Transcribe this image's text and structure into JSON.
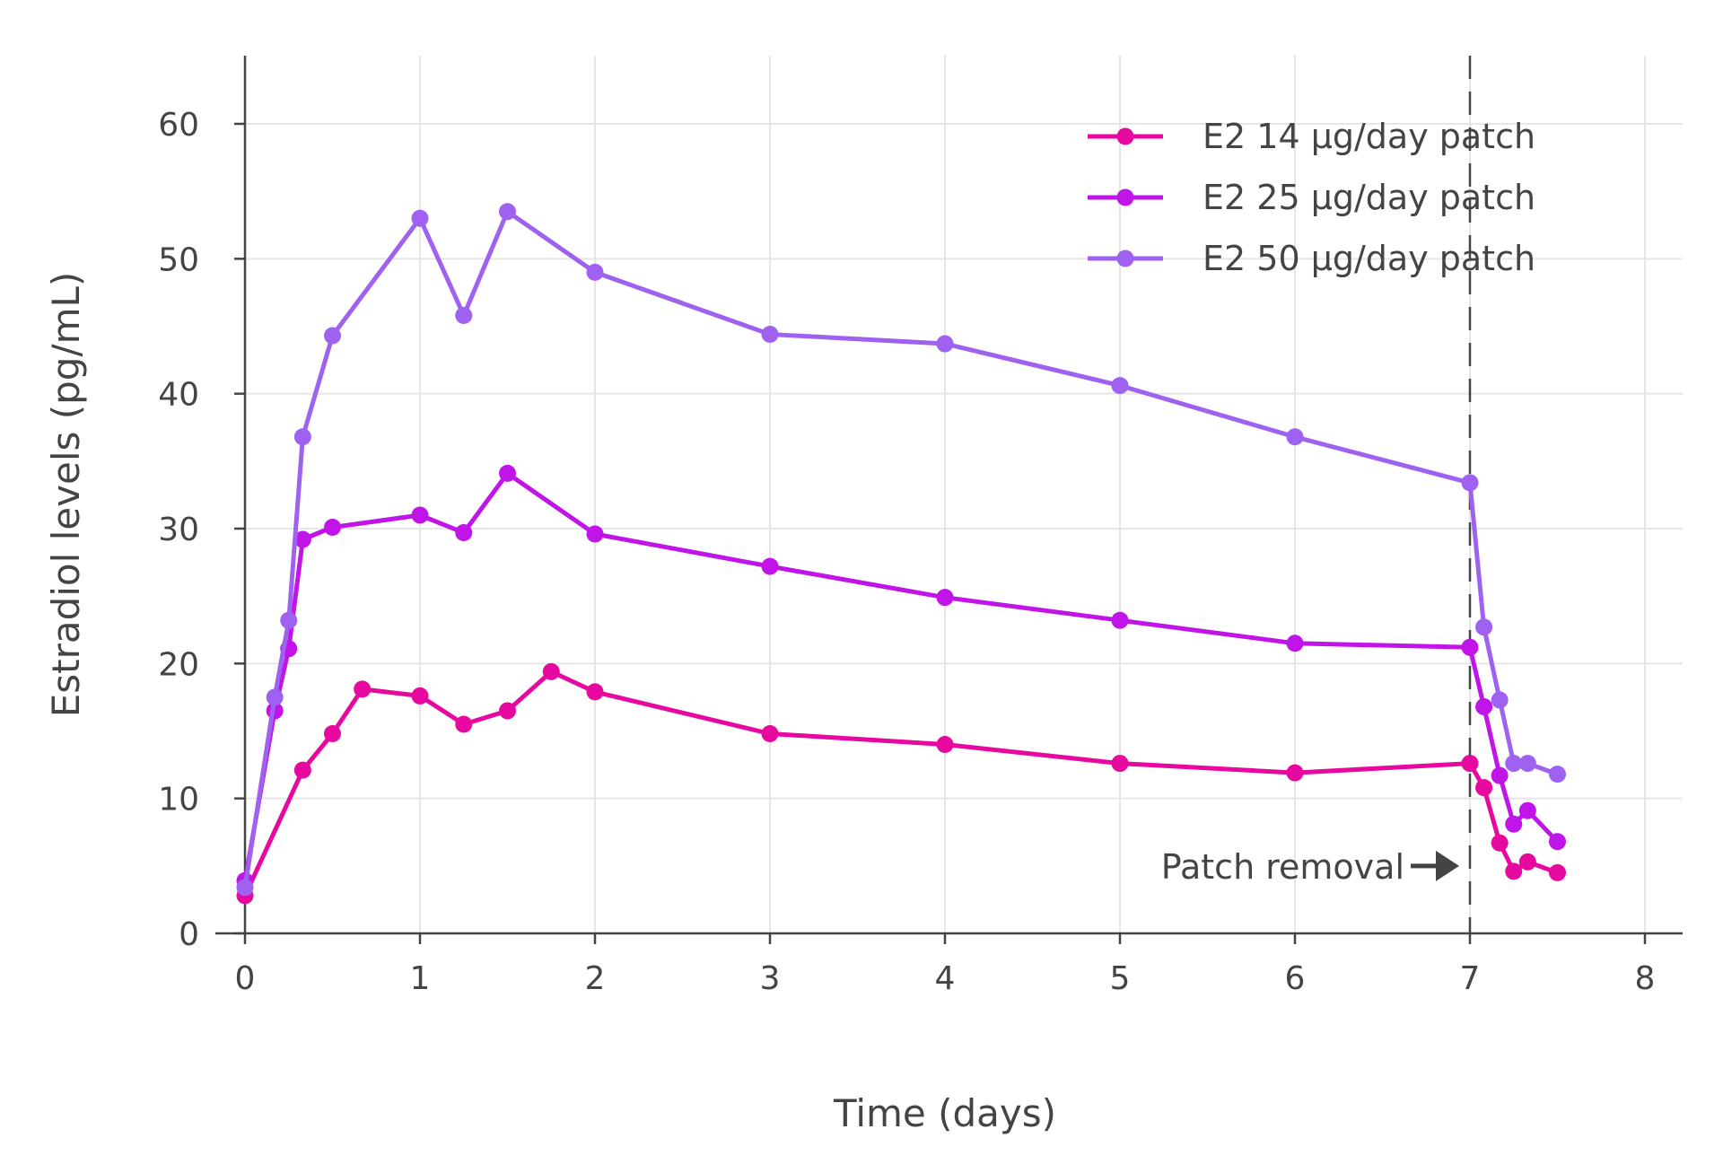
{
  "chart_data": {
    "type": "line",
    "title": "",
    "xlabel": "Time (days)",
    "ylabel": "Estradiol levels (pg/mL)",
    "xlim": [
      -0.2,
      8.25
    ],
    "ylim": [
      0,
      65
    ],
    "x_ticks": [
      0,
      1,
      2,
      3,
      4,
      5,
      6,
      7,
      8
    ],
    "y_ticks": [
      0,
      10,
      20,
      30,
      40,
      50,
      60
    ],
    "grid": true,
    "legend_position": "top-right",
    "series": [
      {
        "name": "E2 14 μg/day patch",
        "color": "#e6089f",
        "points": [
          [
            0,
            2.8
          ],
          [
            0.33,
            12.1
          ],
          [
            0.5,
            14.8
          ],
          [
            0.67,
            18.1
          ],
          [
            1,
            17.6
          ],
          [
            1.25,
            15.5
          ],
          [
            1.5,
            16.5
          ],
          [
            1.75,
            19.4
          ],
          [
            2,
            17.9
          ],
          [
            3,
            14.8
          ],
          [
            4,
            14.0
          ],
          [
            5,
            12.6
          ],
          [
            6,
            11.9
          ],
          [
            7,
            12.6
          ],
          [
            7.08,
            10.8
          ],
          [
            7.17,
            6.7
          ],
          [
            7.25,
            4.6
          ],
          [
            7.33,
            5.3
          ],
          [
            7.5,
            4.5
          ]
        ]
      },
      {
        "name": "E2 25 μg/day patch",
        "color": "#c014e8",
        "points": [
          [
            0,
            3.9
          ],
          [
            0.17,
            16.5
          ],
          [
            0.25,
            21.1
          ],
          [
            0.33,
            29.2
          ],
          [
            0.5,
            30.1
          ],
          [
            1,
            31.0
          ],
          [
            1.25,
            29.7
          ],
          [
            1.5,
            34.1
          ],
          [
            2,
            29.6
          ],
          [
            3,
            27.2
          ],
          [
            4,
            24.9
          ],
          [
            5,
            23.2
          ],
          [
            6,
            21.5
          ],
          [
            7,
            21.2
          ],
          [
            7.08,
            16.8
          ],
          [
            7.17,
            11.7
          ],
          [
            7.25,
            8.1
          ],
          [
            7.33,
            9.1
          ],
          [
            7.5,
            6.8
          ]
        ]
      },
      {
        "name": "E2 50 μg/day patch",
        "color": "#9f62f0",
        "points": [
          [
            0,
            3.4
          ],
          [
            0.17,
            17.5
          ],
          [
            0.25,
            23.2
          ],
          [
            0.33,
            36.8
          ],
          [
            0.5,
            44.3
          ],
          [
            1,
            53.0
          ],
          [
            1.25,
            45.8
          ],
          [
            1.5,
            53.5
          ],
          [
            2,
            49.0
          ],
          [
            3,
            44.4
          ],
          [
            4,
            43.7
          ],
          [
            5,
            40.6
          ],
          [
            6,
            36.8
          ],
          [
            7,
            33.4
          ],
          [
            7.08,
            22.7
          ],
          [
            7.17,
            17.3
          ],
          [
            7.25,
            12.6
          ],
          [
            7.33,
            12.6
          ],
          [
            7.5,
            11.8
          ]
        ]
      }
    ],
    "annotations": [
      {
        "text": "Patch removal",
        "x": 7,
        "y": 5
      }
    ],
    "reference_lines": [
      {
        "x": 7,
        "style": "dashed",
        "color": "#444444"
      }
    ]
  }
}
